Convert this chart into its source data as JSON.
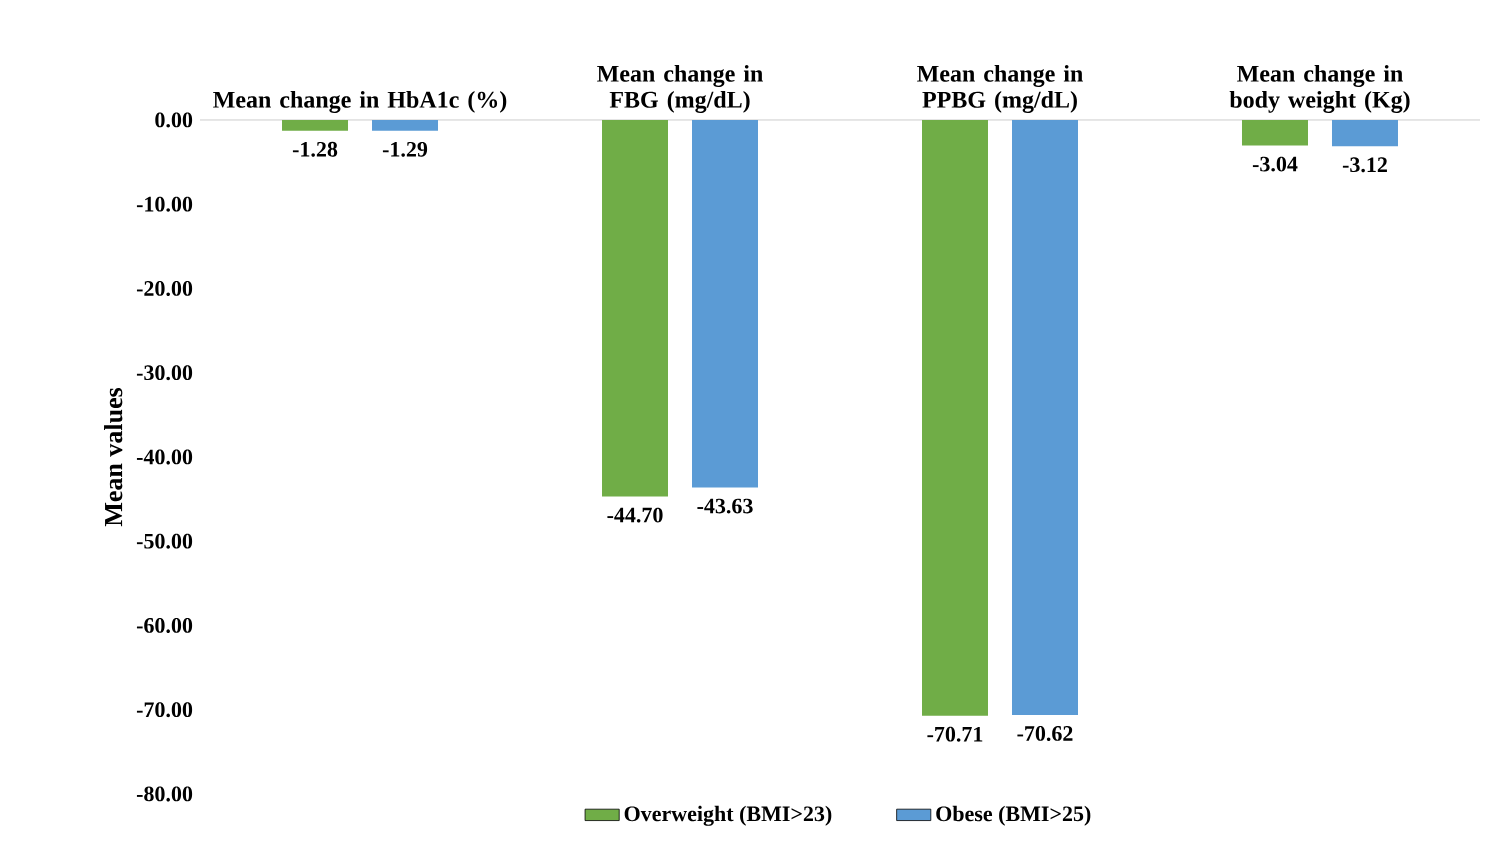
{
  "chart_data": {
    "type": "bar",
    "categories": [
      "Mean change in HbA1c (%)",
      "Mean change in FBG (mg/dL)",
      "Mean change in PPBG (mg/dL)",
      "Mean change in body weight  (Kg)"
    ],
    "ylabel": "Mean values",
    "series": [
      {
        "name": "Overweight (BMI>23)",
        "color": "#70ad47",
        "values": [
          -1.28,
          -44.7,
          -70.71,
          -3.04
        ],
        "value_labels": [
          "-1.28",
          "-44.70",
          "-70.71",
          "-3.04"
        ]
      },
      {
        "name": "Obese (BMI>25)",
        "color": "#5b9bd5",
        "values": [
          -1.29,
          -43.63,
          -70.62,
          -3.12
        ],
        "value_labels": [
          "-1.29",
          "-43.63",
          "-70.62",
          "-3.12"
        ]
      }
    ],
    "ylim": [
      -80,
      0
    ],
    "yticks": [
      {
        "value": 0,
        "label": "0.00"
      },
      {
        "value": -10,
        "label": "-10.00"
      },
      {
        "value": -20,
        "label": "-20.00"
      },
      {
        "value": -30,
        "label": "-30.00"
      },
      {
        "value": -40,
        "label": "-40.00"
      },
      {
        "value": -50,
        "label": "-50.00"
      },
      {
        "value": -60,
        "label": "-60.00"
      },
      {
        "value": -70,
        "label": "-70.00"
      },
      {
        "value": -80,
        "label": "-80.00"
      }
    ],
    "legend": "bottom",
    "grid": false
  }
}
